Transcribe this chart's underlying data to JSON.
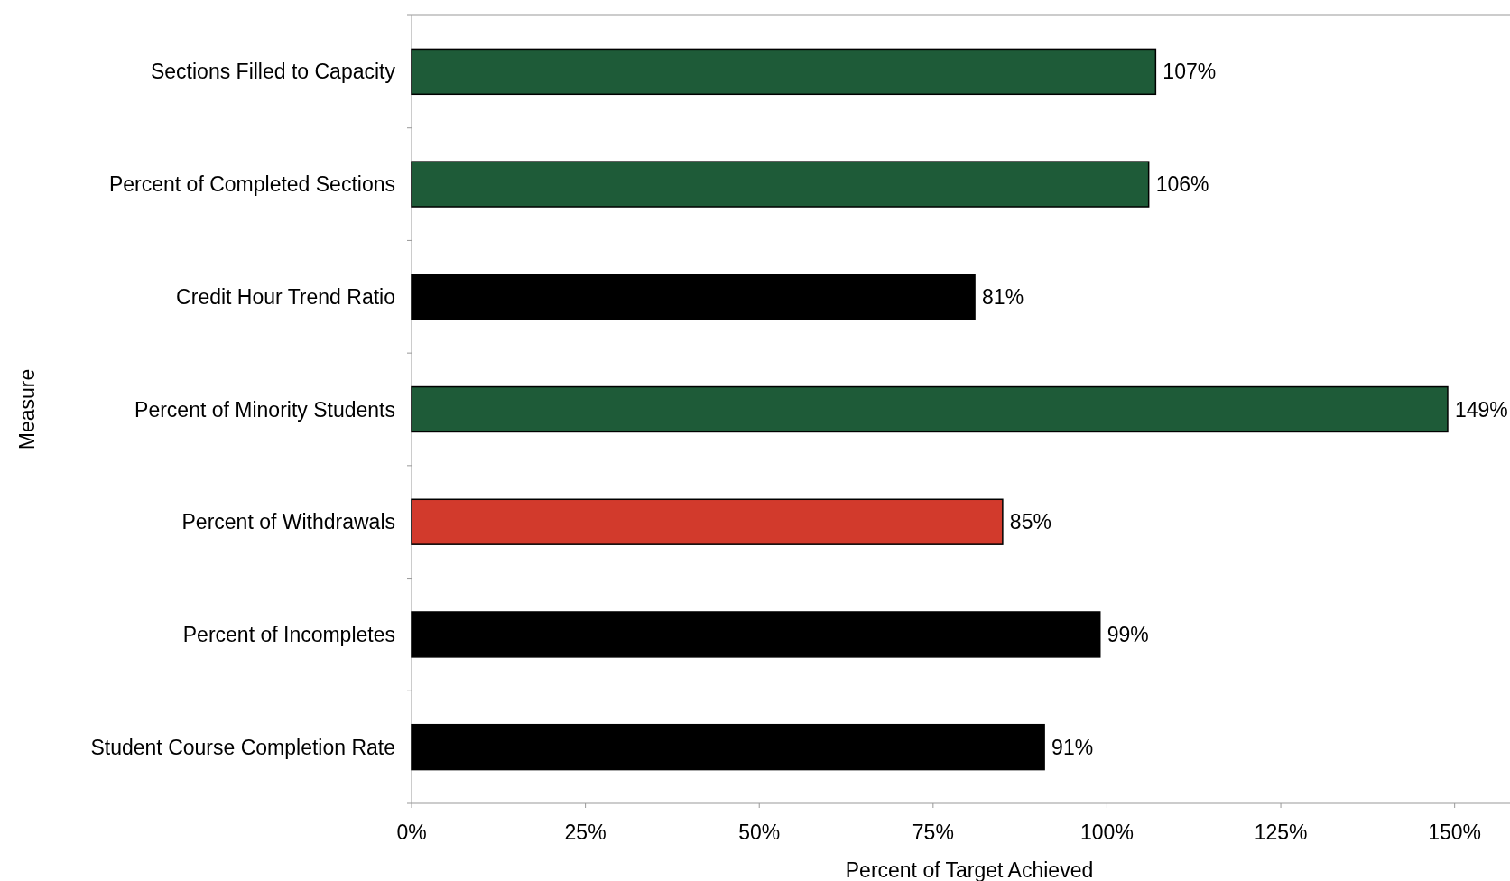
{
  "chart_data": {
    "type": "bar",
    "orientation": "horizontal",
    "xlabel": "Percent of Target Achieved",
    "ylabel": "Measure",
    "categories": [
      "Sections Filled to Capacity",
      "Percent of Completed Sections",
      "Credit Hour Trend Ratio",
      "Percent of Minority Students",
      "Percent of Withdrawals",
      "Percent of Incompletes",
      "Student Course Completion Rate"
    ],
    "values": [
      107,
      106,
      81,
      149,
      85,
      99,
      91
    ],
    "colors": [
      "#1e5b38",
      "#1e5b38",
      "#000000",
      "#1e5b38",
      "#d23a2c",
      "#000000",
      "#000000"
    ],
    "value_labels": [
      "107%",
      "106%",
      "81%",
      "149%",
      "85%",
      "99%",
      "91%"
    ],
    "xlim": [
      0,
      159
    ],
    "xticks": [
      {
        "value": 0,
        "label": "0%"
      },
      {
        "value": 25,
        "label": "25%"
      },
      {
        "value": 50,
        "label": "50%"
      },
      {
        "value": 75,
        "label": "75%"
      },
      {
        "value": 100,
        "label": "100%"
      },
      {
        "value": 125,
        "label": "125%"
      },
      {
        "value": 150,
        "label": "150%"
      }
    ],
    "grid": false
  }
}
